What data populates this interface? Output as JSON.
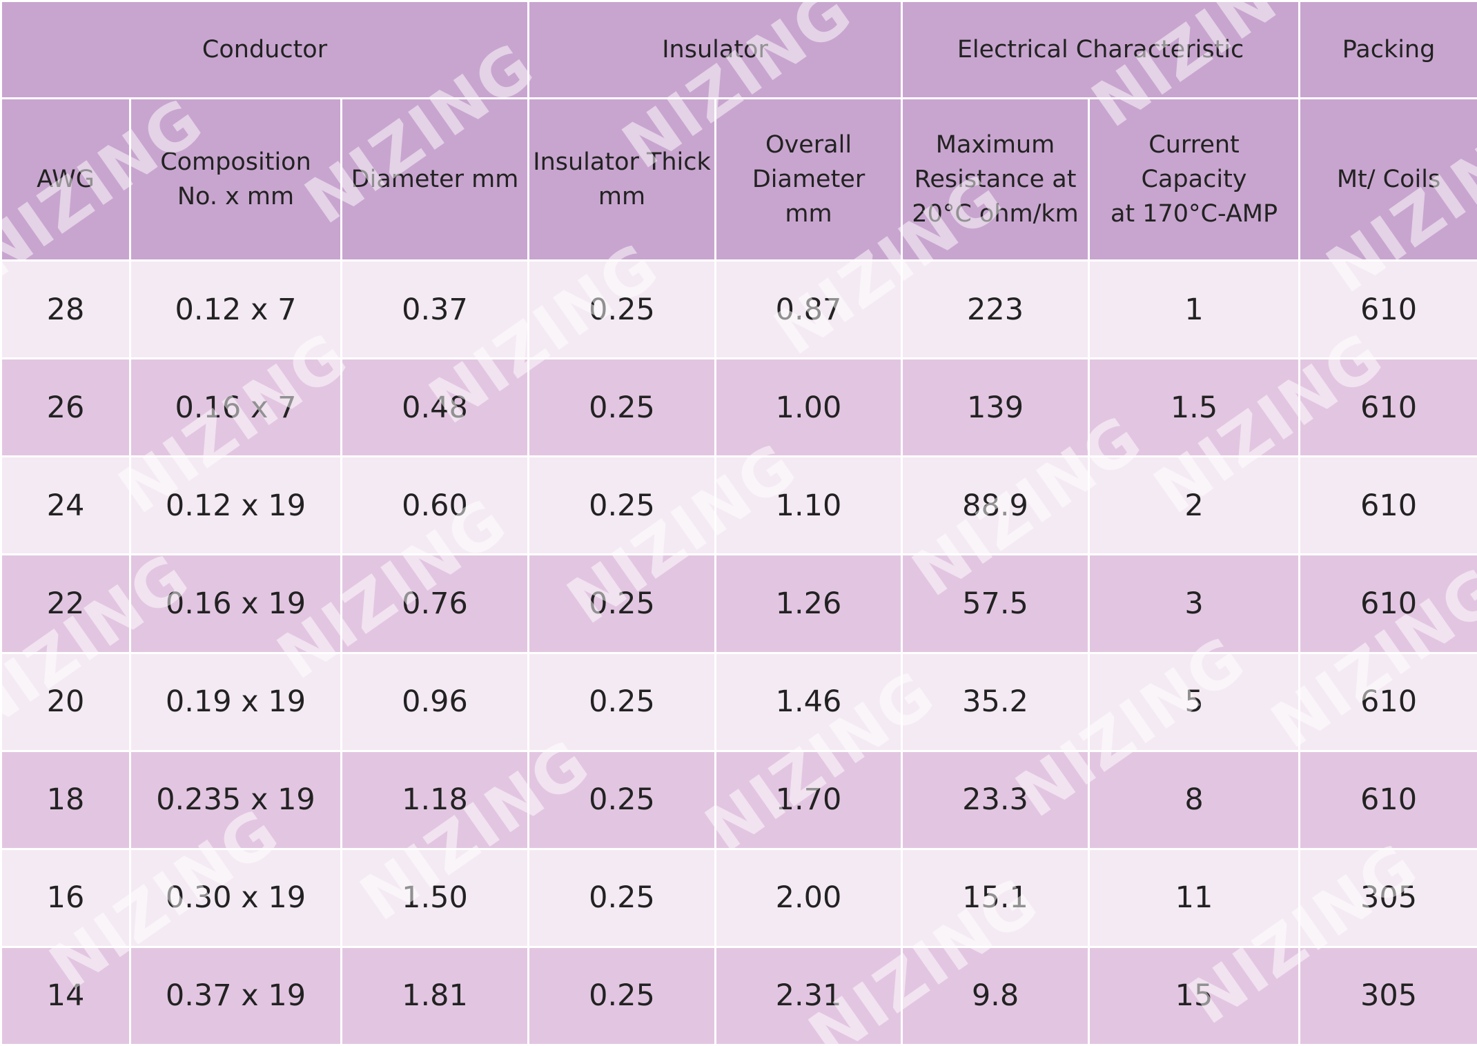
{
  "header": {
    "groups": [
      "Conductor",
      "Insulator",
      "Electrical Characteristic",
      "Packing"
    ],
    "columns": [
      "AWG",
      "Composition\nNo. x mm",
      "Diameter mm",
      "Insulator Thick\nmm",
      "Overall\nDiameter\nmm",
      "Maximum\nResistance at\n20°C ohm/km",
      "Current Capacity\nat 170°C-AMP",
      "Mt/ Coils"
    ]
  },
  "table": {
    "rows": [
      [
        "28",
        "0.12 x 7",
        "0.37",
        "0.25",
        "0.87",
        "223",
        "1",
        "610"
      ],
      [
        "26",
        "0.16 x 7",
        "0.48",
        "0.25",
        "1.00",
        "139",
        "1.5",
        "610"
      ],
      [
        "24",
        "0.12 x 19",
        "0.60",
        "0.25",
        "1.10",
        "88.9",
        "2",
        "610"
      ],
      [
        "22",
        "0.16 x 19",
        "0.76",
        "0.25",
        "1.26",
        "57.5",
        "3",
        "610"
      ],
      [
        "20",
        "0.19 x 19",
        "0.96",
        "0.25",
        "1.46",
        "35.2",
        "5",
        "610"
      ],
      [
        "18",
        "0.235 x 19",
        "1.18",
        "0.25",
        "1.70",
        "23.3",
        "8",
        "610"
      ],
      [
        "16",
        "0.30 x 19",
        "1.50",
        "0.25",
        "2.00",
        "15.1",
        "11",
        "305"
      ],
      [
        "14",
        "0.37 x 19",
        "1.81",
        "0.25",
        "2.31",
        "9.8",
        "15",
        "305"
      ]
    ]
  },
  "watermark": "NIZING"
}
